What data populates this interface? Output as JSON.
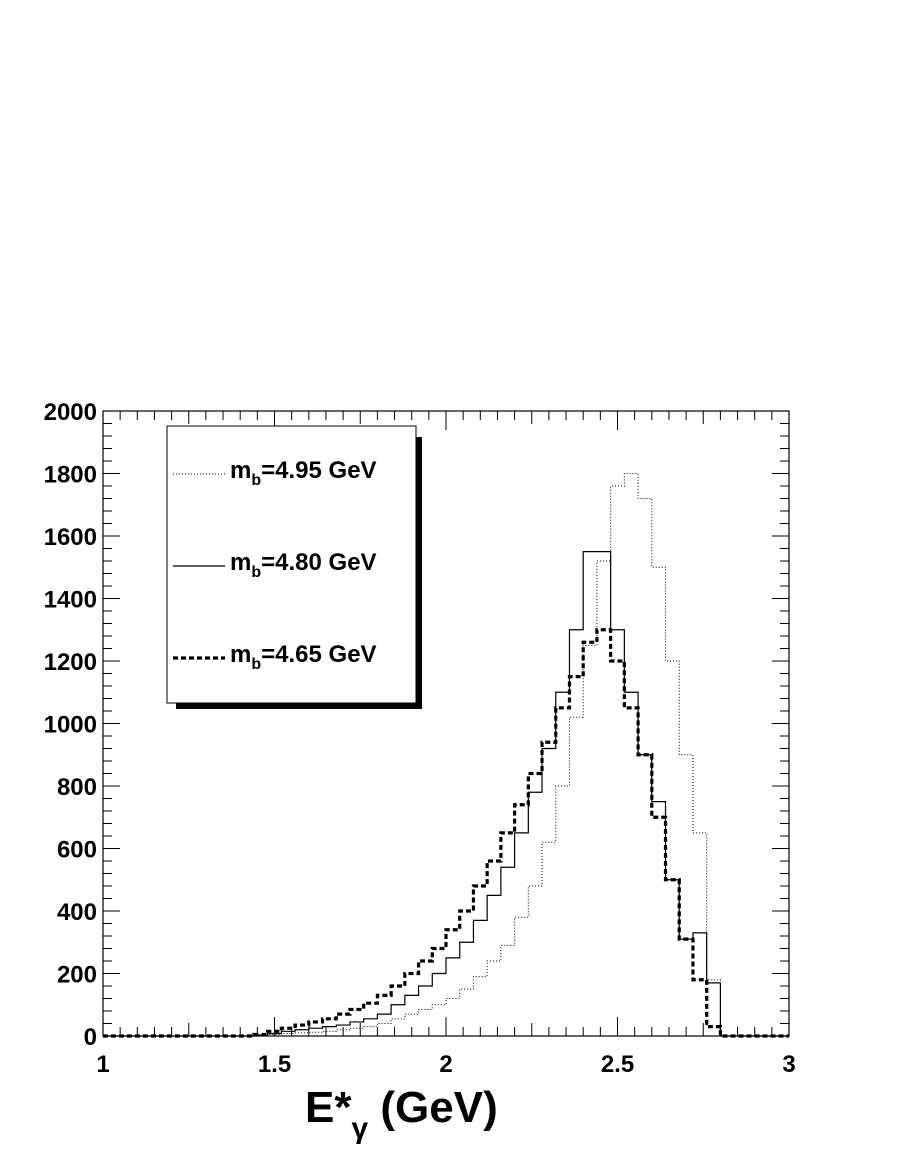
{
  "chart_data": {
    "type": "line",
    "style": "step-histogram",
    "title": "",
    "xlabel": {
      "main": "E*",
      "subscript": "γ",
      "suffix": " (GeV)"
    },
    "ylabel": "",
    "xlim": [
      1,
      3
    ],
    "ylim": [
      0,
      2000
    ],
    "xticks": [
      1,
      1.5,
      2,
      2.5,
      3
    ],
    "xtick_labels": [
      "1",
      "1.5",
      "2",
      "2.5",
      "3"
    ],
    "yticks": [
      0,
      200,
      400,
      600,
      800,
      1000,
      1200,
      1400,
      1600,
      1800,
      2000
    ],
    "ytick_labels": [
      "0",
      "200",
      "400",
      "600",
      "800",
      "1000",
      "1200",
      "1400",
      "1600",
      "1800",
      "2000"
    ],
    "grid": false,
    "legend_position": "top-left",
    "bin_edges": [
      1.0,
      1.04,
      1.08,
      1.12,
      1.16,
      1.2,
      1.24,
      1.28,
      1.32,
      1.36,
      1.4,
      1.44,
      1.48,
      1.52,
      1.56,
      1.6,
      1.64,
      1.68,
      1.72,
      1.76,
      1.8,
      1.84,
      1.88,
      1.92,
      1.96,
      2.0,
      2.04,
      2.08,
      2.12,
      2.16,
      2.2,
      2.24,
      2.28,
      2.32,
      2.36,
      2.4,
      2.44,
      2.48,
      2.52,
      2.56,
      2.6,
      2.64,
      2.68,
      2.72,
      2.76,
      2.8,
      2.84,
      2.88,
      2.92,
      2.96,
      3.0
    ],
    "series": [
      {
        "legend_main": "m",
        "legend_sub": "b",
        "legend_rest": "=4.95 GeV",
        "line_style": "dotted",
        "values": [
          0,
          0,
          0,
          0,
          0,
          0,
          0,
          0,
          0,
          0,
          0,
          2,
          5,
          8,
          10,
          12,
          15,
          20,
          25,
          30,
          40,
          55,
          70,
          85,
          100,
          120,
          150,
          190,
          240,
          290,
          380,
          480,
          620,
          800,
          1020,
          1250,
          1520,
          1760,
          1800,
          1720,
          1500,
          1200,
          900,
          650,
          180,
          0,
          0,
          0,
          0,
          0
        ]
      },
      {
        "legend_main": "m",
        "legend_sub": "b",
        "legend_rest": "=4.80 GeV",
        "line_style": "solid",
        "values": [
          0,
          0,
          0,
          0,
          0,
          0,
          0,
          0,
          0,
          0,
          0,
          3,
          8,
          15,
          20,
          25,
          30,
          35,
          45,
          55,
          70,
          100,
          130,
          160,
          200,
          250,
          300,
          370,
          450,
          540,
          650,
          780,
          920,
          1100,
          1300,
          1550,
          1550,
          1300,
          1100,
          900,
          750,
          500,
          310,
          330,
          170,
          0,
          0,
          0,
          0,
          0
        ]
      },
      {
        "legend_main": "m",
        "legend_sub": "b",
        "legend_rest": "=4.65 GeV",
        "line_style": "dashed",
        "values": [
          0,
          0,
          0,
          0,
          0,
          0,
          0,
          0,
          0,
          0,
          0,
          5,
          15,
          25,
          35,
          45,
          55,
          70,
          85,
          105,
          130,
          160,
          200,
          240,
          280,
          340,
          400,
          480,
          560,
          650,
          740,
          840,
          940,
          1050,
          1150,
          1260,
          1300,
          1200,
          1050,
          900,
          700,
          500,
          310,
          180,
          30,
          0,
          0,
          0,
          0,
          0
        ]
      }
    ]
  }
}
